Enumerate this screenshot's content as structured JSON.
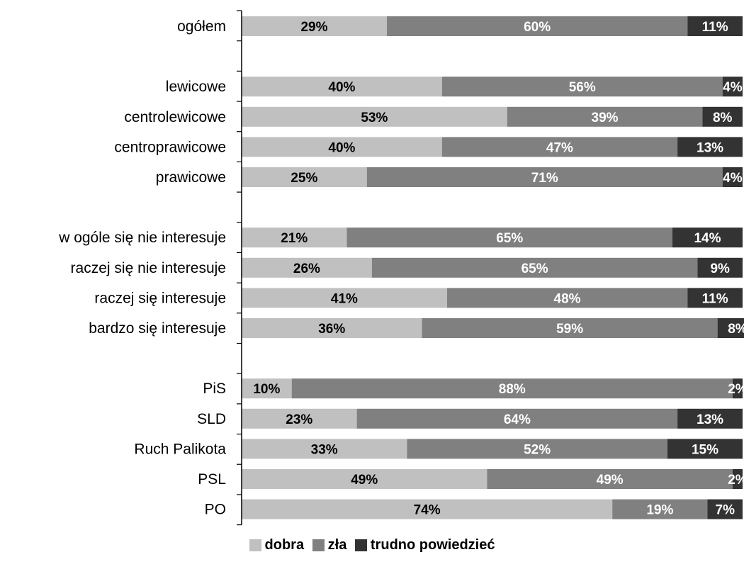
{
  "chart_data": {
    "type": "bar",
    "orientation": "horizontal",
    "stacked": true,
    "title": "",
    "xlabel": "",
    "ylabel": "",
    "xlim": [
      0,
      100
    ],
    "grid": false,
    "legend_position": "bottom",
    "categories": [
      "ogółem",
      "",
      "lewicowe",
      "centrolewicowe",
      "centroprawicowe",
      "prawicowe",
      "",
      "w ogóle się nie interesuje",
      "raczej się nie interesuje",
      "raczej się interesuje",
      "bardzo się interesuje",
      "",
      "PiS",
      "SLD",
      "Ruch Palikota",
      "PSL",
      "PO"
    ],
    "series": [
      {
        "name": "dobra",
        "color": "#c0c0c0",
        "label_color": "#000000",
        "values": [
          29,
          null,
          40,
          53,
          40,
          25,
          null,
          21,
          26,
          41,
          36,
          null,
          10,
          23,
          33,
          49,
          74
        ]
      },
      {
        "name": "zła",
        "color": "#808080",
        "label_color": "#ffffff",
        "values": [
          60,
          null,
          56,
          39,
          47,
          71,
          null,
          65,
          65,
          48,
          59,
          null,
          88,
          64,
          52,
          49,
          19
        ]
      },
      {
        "name": "trudno powiedzieć",
        "color": "#333333",
        "label_color": "#ffffff",
        "values": [
          11,
          null,
          4,
          8,
          13,
          4,
          null,
          14,
          9,
          11,
          8,
          null,
          2,
          13,
          15,
          2,
          7
        ]
      }
    ]
  }
}
